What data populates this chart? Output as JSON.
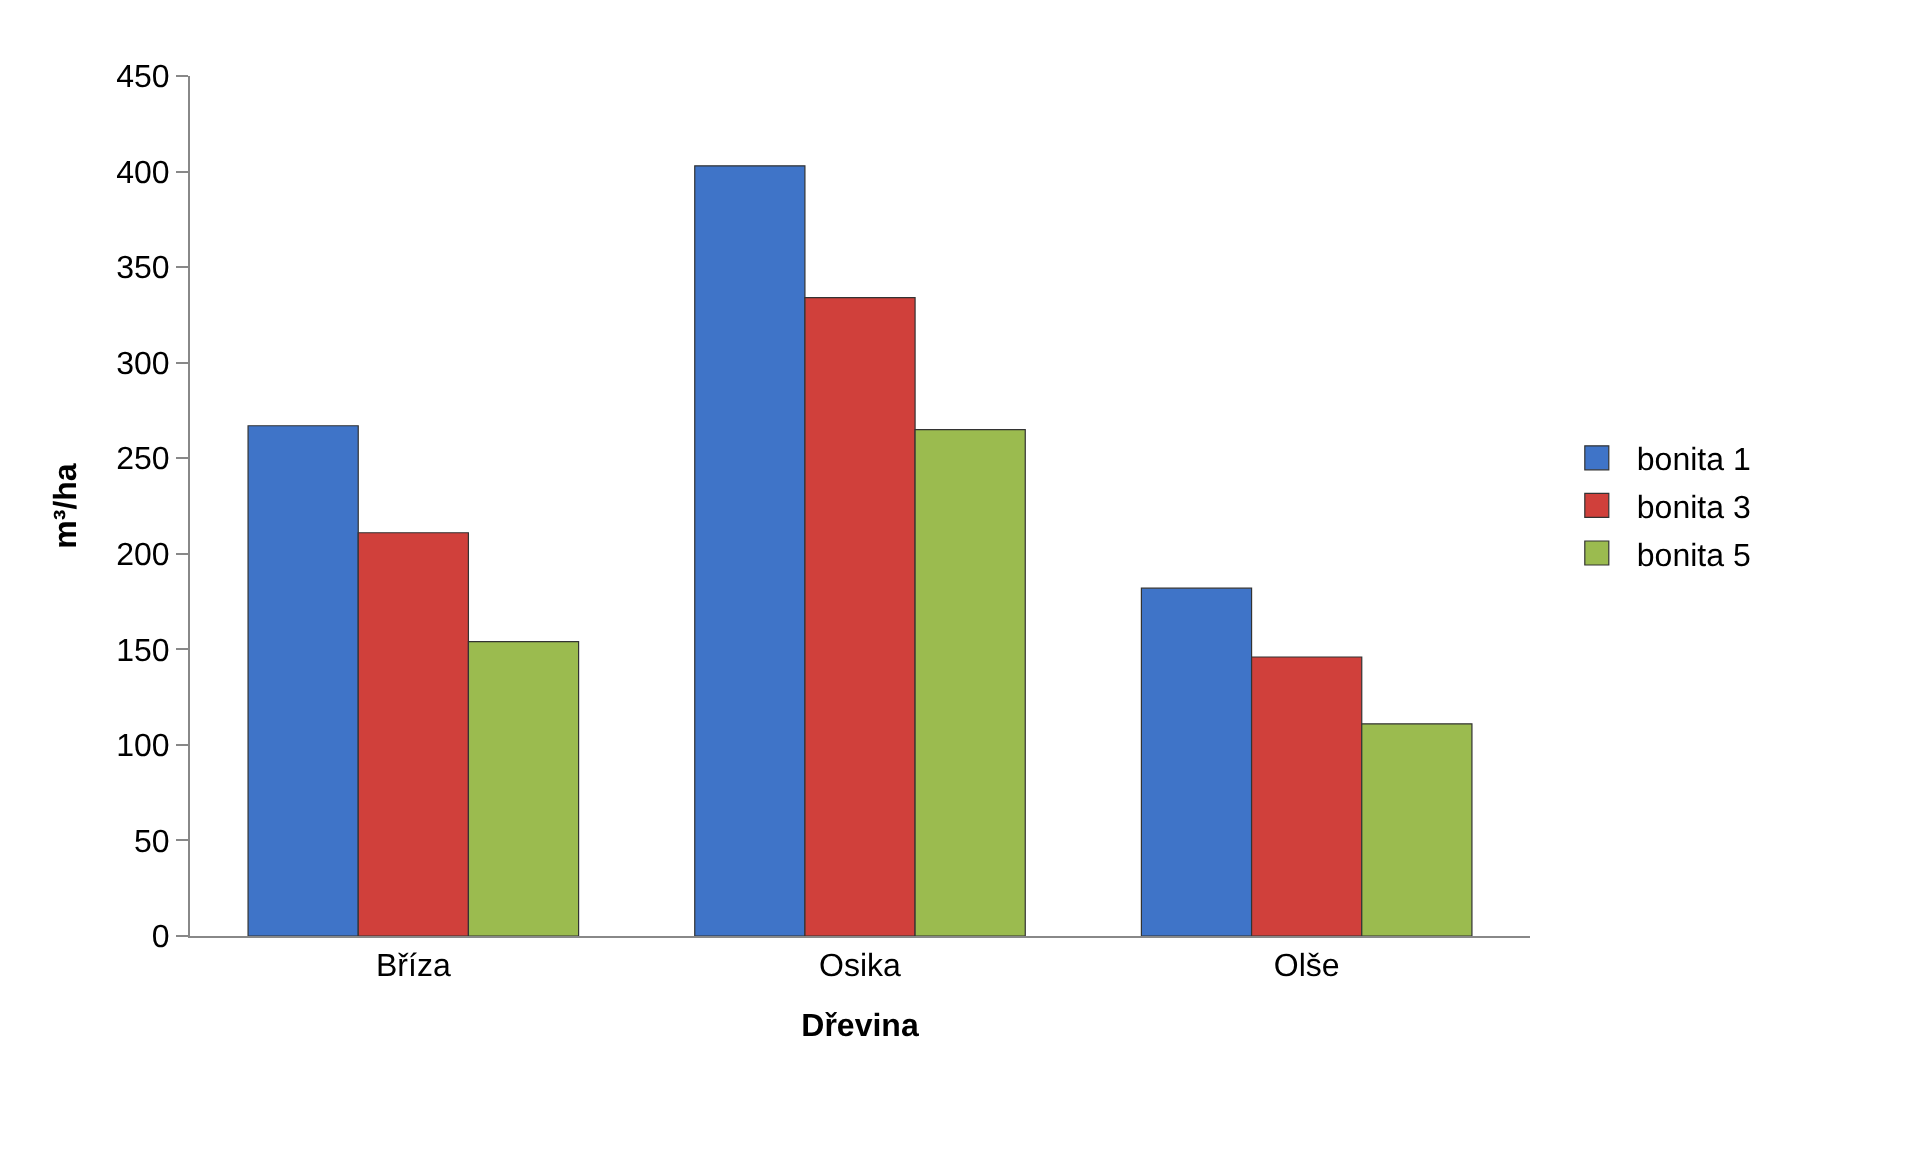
{
  "chart_data": {
    "type": "bar",
    "xlabel": "Dřevina",
    "ylabel": "m³/ha",
    "categories": [
      "Bříza",
      "Osika",
      "Olše"
    ],
    "series": [
      {
        "name": "bonita 1",
        "color": "#3f74c8",
        "values": [
          267,
          403,
          182
        ]
      },
      {
        "name": "bonita 3",
        "color": "#d0403b",
        "values": [
          211,
          334,
          146
        ]
      },
      {
        "name": "bonita 5",
        "color": "#9bbb4f",
        "values": [
          154,
          265,
          111
        ]
      }
    ],
    "ylim": [
      0,
      450
    ],
    "yticks": [
      0,
      50,
      100,
      150,
      200,
      250,
      300,
      350,
      400,
      450
    ],
    "grid": false,
    "legend": "right"
  }
}
